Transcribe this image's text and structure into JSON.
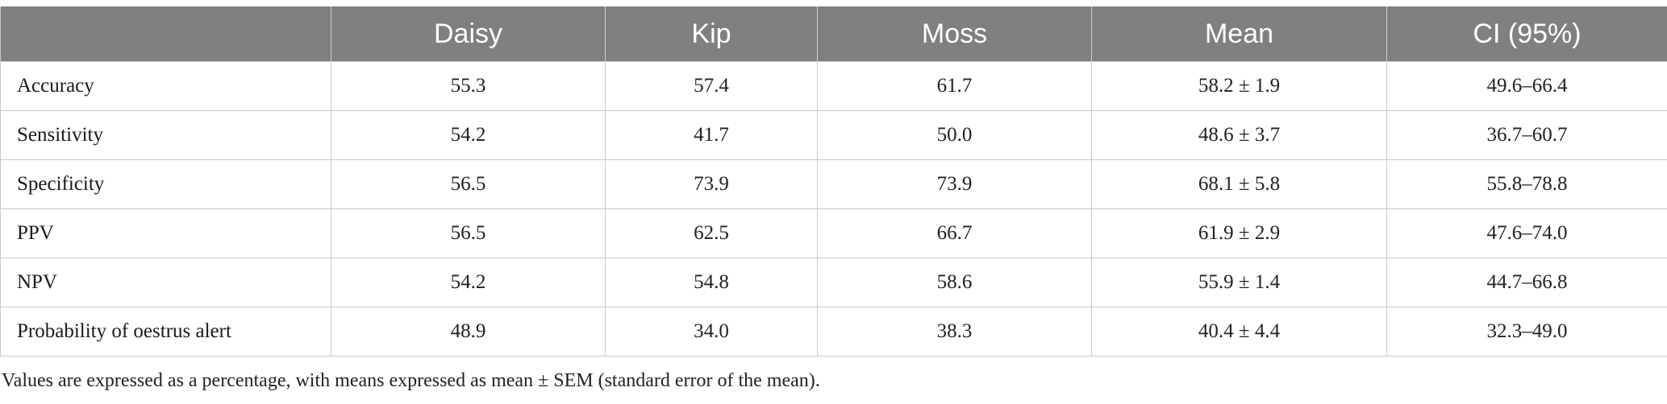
{
  "table": {
    "headers": [
      "",
      "Daisy",
      "Kip",
      "Moss",
      "Mean",
      "CI (95%)"
    ],
    "rows": [
      [
        "Accuracy",
        "55.3",
        "57.4",
        "61.7",
        "58.2 ± 1.9",
        "49.6–66.4"
      ],
      [
        "Sensitivity",
        "54.2",
        "41.7",
        "50.0",
        "48.6 ± 3.7",
        "36.7–60.7"
      ],
      [
        "Specificity",
        "56.5",
        "73.9",
        "73.9",
        "68.1 ± 5.8",
        "55.8–78.8"
      ],
      [
        "PPV",
        "56.5",
        "62.5",
        "66.7",
        "61.9 ± 2.9",
        "47.6–74.0"
      ],
      [
        "NPV",
        "54.2",
        "54.8",
        "58.6",
        "55.9 ± 1.4",
        "44.7–66.8"
      ],
      [
        "Probability of oestrus alert",
        "48.9",
        "34.0",
        "38.3",
        "40.4 ± 4.4",
        "32.3–49.0"
      ]
    ]
  },
  "footnote": "Values are expressed as a percentage, with means expressed as mean ± SEM (standard error of the mean).",
  "colors": {
    "header_bg": "#808080",
    "header_text": "#ffffff",
    "grid": "#c8c8c8"
  }
}
